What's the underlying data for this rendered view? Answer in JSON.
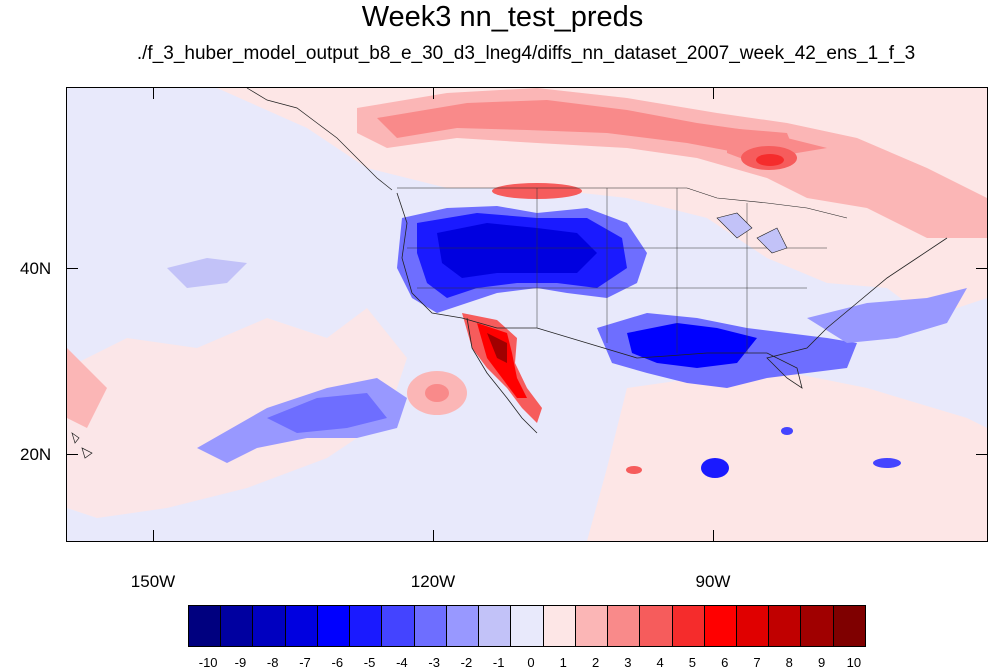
{
  "title": "Week3 nn_test_preds",
  "subtitle": "./f_3_huber_model_output_b8_e_30_d3_lneg4/diffs_nn_dataset_2007_week_42_ens_1_f_3",
  "lat_labels": [
    "40N",
    "20N"
  ],
  "lon_labels": [
    "150W",
    "120W",
    "90W"
  ],
  "colorbar": {
    "labels": [
      "-10",
      "-9",
      "-8",
      "-7",
      "-6",
      "-5",
      "-4",
      "-3",
      "-2",
      "-1",
      "0",
      "1",
      "2",
      "3",
      "4",
      "5",
      "6",
      "7",
      "8",
      "9",
      "10"
    ],
    "colors": [
      "#00007f",
      "#0000a0",
      "#0000c0",
      "#0000e0",
      "#0000ff",
      "#1a1aff",
      "#4444ff",
      "#6e6eff",
      "#9898ff",
      "#c2c2f8",
      "#e8e9fb",
      "#fde6e6",
      "#fbb6b6",
      "#f98a8a",
      "#f65c5c",
      "#f52c2c",
      "#ff0000",
      "#e00000",
      "#c00000",
      "#a00000",
      "#7f0000"
    ]
  }
}
